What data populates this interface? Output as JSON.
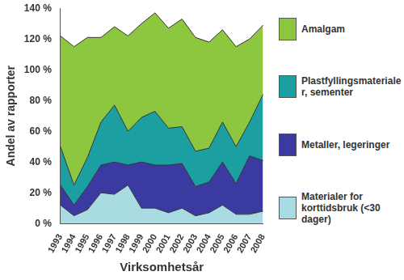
{
  "chart_data": {
    "type": "area",
    "stacked": true,
    "grid": false,
    "legend": "right",
    "x_label": "Virksomhetsår",
    "y_label": "Andel av rapporter",
    "categories": [
      "1993",
      "1994",
      "1995",
      "1996",
      "1997",
      "1998",
      "1999",
      "2000",
      "2001",
      "2002",
      "2003",
      "2004",
      "2005",
      "2006",
      "2007",
      "2008"
    ],
    "series": [
      {
        "name": "Materialer for korttidsbruk (<30 dager)",
        "color": "#a9dbe3",
        "values": [
          12,
          5,
          9,
          20,
          19,
          25,
          10,
          10,
          7,
          10,
          5,
          7,
          12,
          6,
          6,
          8
        ]
      },
      {
        "name": "Metaller, legeringer",
        "color": "#3b3aa1",
        "values": [
          13,
          7,
          15,
          18,
          21,
          13,
          30,
          28,
          31,
          29,
          19,
          20,
          28,
          20,
          38,
          33
        ]
      },
      {
        "name": "Plastfyllingsmaterialer, sementer",
        "color": "#1c9fa0",
        "values": [
          25,
          13,
          19,
          28,
          37,
          22,
          29,
          35,
          24,
          24,
          23,
          22,
          26,
          24,
          22,
          43
        ]
      },
      {
        "name": "Amalgam",
        "color": "#8dc63f",
        "values": [
          72,
          90,
          78,
          55,
          51,
          62,
          61,
          64,
          65,
          70,
          74,
          69,
          60,
          65,
          54,
          45
        ]
      }
    ],
    "ylim": [
      0,
      140
    ],
    "yticks": [
      {
        "value": 0,
        "label": "0 %"
      },
      {
        "value": 20,
        "label": "20 %"
      },
      {
        "value": 40,
        "label": "40 %"
      },
      {
        "value": 60,
        "label": "60 %"
      },
      {
        "value": 80,
        "label": "80 %"
      },
      {
        "value": 100,
        "label": "100 %"
      },
      {
        "value": 120,
        "label": "120 %"
      },
      {
        "value": 140,
        "label": "140 %"
      }
    ]
  }
}
